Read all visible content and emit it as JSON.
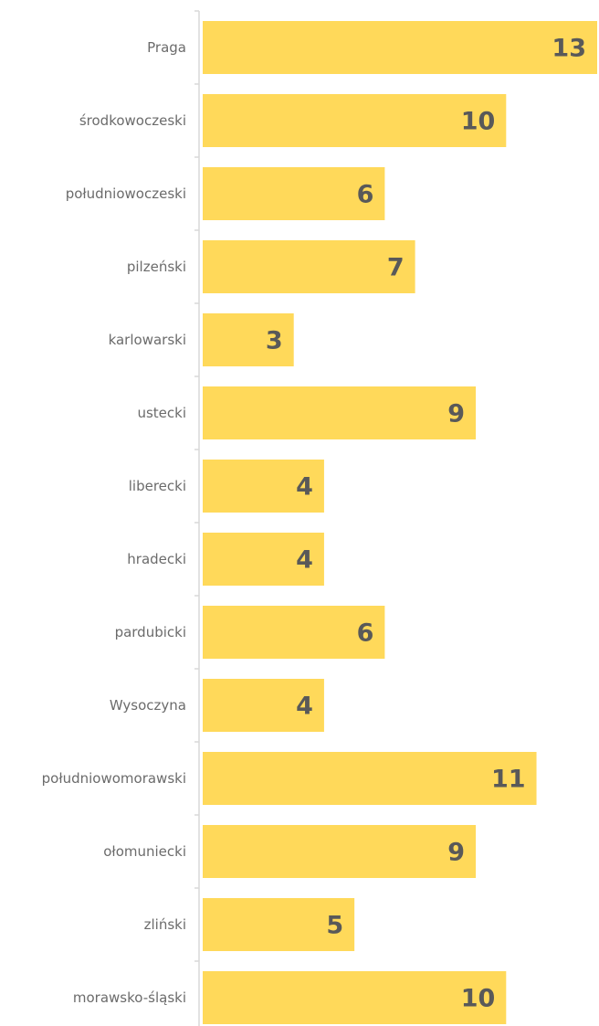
{
  "chart_data": {
    "type": "bar",
    "orientation": "horizontal",
    "categories": [
      "Praga",
      "środkowoczeski",
      "południowoczeski",
      "pilzeński",
      "karlowarski",
      "ustecki",
      "liberecki",
      "hradecki",
      "pardubicki",
      "Wysoczyna",
      "południowomorawski",
      "ołomuniecki",
      "zliński",
      "morawsko-śląski"
    ],
    "values": [
      13,
      10,
      6,
      7,
      3,
      9,
      4,
      4,
      6,
      4,
      11,
      9,
      5,
      10
    ],
    "title": "",
    "xlabel": "",
    "ylabel": "",
    "xlim": [
      0,
      13
    ],
    "grid": false,
    "legend": "none",
    "data_labels": "inside-end",
    "colors": {
      "bar": "#FFD95A",
      "axis": "#D9D9D9",
      "category_text": "#6B6B6B",
      "value_text": "#595959"
    }
  }
}
